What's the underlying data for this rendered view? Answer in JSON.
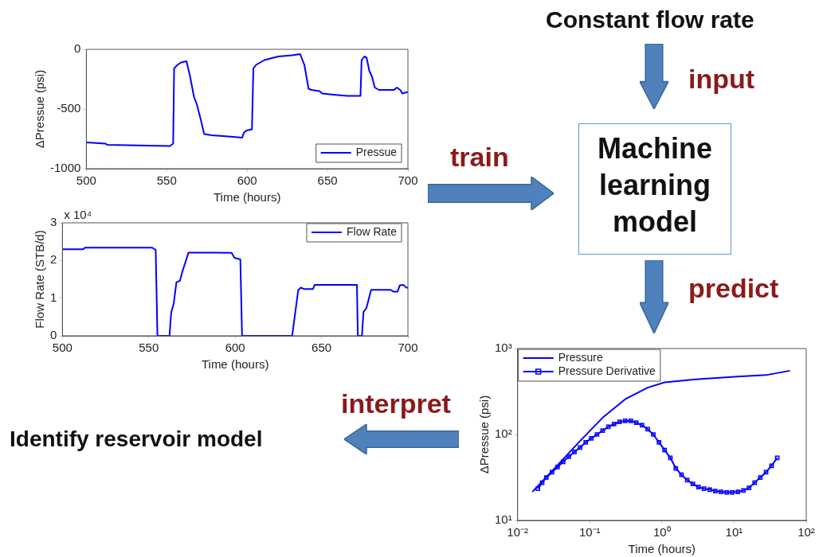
{
  "chart_data": [
    {
      "type": "line",
      "xlabel": "Time (hours)",
      "ylabel": "ΔPressue (psi)",
      "xlim": [
        500,
        700
      ],
      "xticks": [
        500,
        550,
        600,
        650,
        700
      ],
      "ylim": [
        -1000,
        0
      ],
      "yticks": [
        -1000,
        -500,
        0
      ],
      "legend": "bottom right",
      "grid": false,
      "series": [
        {
          "name": "Pressue",
          "color": "#0000ff",
          "x": [
            500,
            512,
            513,
            552,
            554,
            554.6,
            556.7,
            559,
            562.3,
            564.4,
            567,
            568.7,
            571.2,
            573.3,
            578,
            588.4,
            597,
            597.9,
            599.6,
            603,
            603.9,
            605.6,
            610.7,
            619.3,
            627.9,
            633,
            635.6,
            637.3,
            638.2,
            640,
            645,
            646.7,
            653.7,
            662.2,
            670.5,
            671.2,
            672.9,
            674.3,
            676,
            677.7,
            679.4,
            682,
            691.4,
            693.1,
            695.2,
            696.6,
            699.1,
            700
          ],
          "values": [
            -780,
            -790,
            -800,
            -810,
            -790,
            -160,
            -130,
            -110,
            -100,
            -220,
            -400,
            -460,
            -590,
            -710,
            -720,
            -730,
            -740,
            -700,
            -680,
            -670,
            -160,
            -130,
            -90,
            -60,
            -50,
            -40,
            -130,
            -260,
            -330,
            -340,
            -350,
            -370,
            -380,
            -390,
            -390,
            -90,
            -60,
            -70,
            -180,
            -230,
            -320,
            -340,
            -340,
            -320,
            -340,
            -370,
            -360,
            -360
          ]
        }
      ]
    },
    {
      "type": "line",
      "xlabel": "Time (hours)",
      "ylabel": "Flow Rate (STB/d)",
      "xlim": [
        500,
        700
      ],
      "xticks": [
        500,
        550,
        600,
        650,
        700
      ],
      "ylim": [
        0,
        3
      ],
      "yticks": [
        0,
        1,
        2,
        3
      ],
      "legend": "top right",
      "grid": false,
      "annotations": [
        "x 10⁴"
      ],
      "series": [
        {
          "name": "Flow Rate",
          "color": "#0000ff",
          "x": [
            500,
            512,
            513,
            552,
            554,
            555,
            562,
            563,
            564.4,
            566,
            568,
            569.5,
            573,
            588,
            598,
            599.6,
            603,
            604,
            633,
            634,
            636.5,
            638,
            640,
            645,
            646,
            670.5,
            671,
            673.4,
            674.3,
            676,
            678.7,
            690,
            691.7,
            694,
            695.3,
            697.5,
            699,
            700
          ],
          "values": [
            2.3,
            2.3,
            2.34,
            2.34,
            2.28,
            0,
            0,
            0.63,
            0.85,
            1.42,
            1.46,
            1.71,
            2.21,
            2.21,
            2.2,
            2.07,
            2.03,
            0,
            0,
            0.34,
            1.21,
            1.28,
            1.24,
            1.24,
            1.35,
            1.35,
            0,
            0,
            0.63,
            0.74,
            1.22,
            1.22,
            1.17,
            1.17,
            1.34,
            1.35,
            1.28,
            1.28
          ]
        }
      ]
    },
    {
      "type": "line",
      "xlabel": "Time (hours)",
      "ylabel": "ΔPressue (psi)",
      "log": "xy",
      "xlim": [
        0.01,
        100
      ],
      "xticks": [
        {
          "value": 0.01,
          "label": "10⁻²"
        },
        {
          "value": 0.1,
          "label": "10⁻¹"
        },
        {
          "value": 1,
          "label": "10⁰"
        },
        {
          "value": 10,
          "label": "10¹"
        },
        {
          "value": 100,
          "label": "10²"
        }
      ],
      "ylim": [
        10,
        1000
      ],
      "yticks": [
        {
          "value": 10,
          "label": "10¹"
        },
        {
          "value": 100,
          "label": "10²"
        },
        {
          "value": 1000,
          "label": "10³"
        }
      ],
      "legend": "top left",
      "grid": false,
      "series": [
        {
          "name": "Pressure",
          "color": "#0000ff",
          "marker": "none",
          "x": [
            0.016,
            0.0327,
            0.0735,
            0.151,
            0.31,
            0.635,
            1.09,
            2.92,
            11.3,
            27.7,
            59.4
          ],
          "values": [
            21.5,
            40.4,
            84,
            157,
            257,
            351,
            404,
            438,
            471,
            491,
            552
          ]
        },
        {
          "name": "Pressure Derivative",
          "color": "#0000ff",
          "marker": "square",
          "x": [
            0.0191,
            0.0219,
            0.025,
            0.03,
            0.0358,
            0.0428,
            0.0512,
            0.0613,
            0.0735,
            0.088,
            0.105,
            0.126,
            0.151,
            0.181,
            0.217,
            0.259,
            0.31,
            0.37,
            0.44,
            0.53,
            0.635,
            0.76,
            0.91,
            1.09,
            1.31,
            1.56,
            1.87,
            2.24,
            2.68,
            3.21,
            3.84,
            4.6,
            5.5,
            6.6,
            7.9,
            9.4,
            11.3,
            13.5,
            16.1,
            19.3,
            23.1,
            27.7,
            33.1,
            39.6
          ],
          "values": [
            23.4,
            27.5,
            31.6,
            36.4,
            41.8,
            48.1,
            55.2,
            62.7,
            70.5,
            81.1,
            90.1,
            100,
            111,
            123,
            132,
            140,
            144,
            144,
            137,
            128,
            115,
            100,
            81,
            65.8,
            53.4,
            40.4,
            33.9,
            29.5,
            26.6,
            24.4,
            23.4,
            22.8,
            22,
            21.5,
            21.2,
            21.2,
            21.5,
            22.3,
            23.9,
            27.5,
            31.6,
            36.4,
            43.3,
            53.4
          ]
        }
      ]
    },
    {
      "type": "other",
      "annotations": [
        "Constant flow rate",
        "input",
        "train",
        "Machine learning model",
        "predict",
        "interpret",
        "Identify reservoir model"
      ]
    }
  ]
}
